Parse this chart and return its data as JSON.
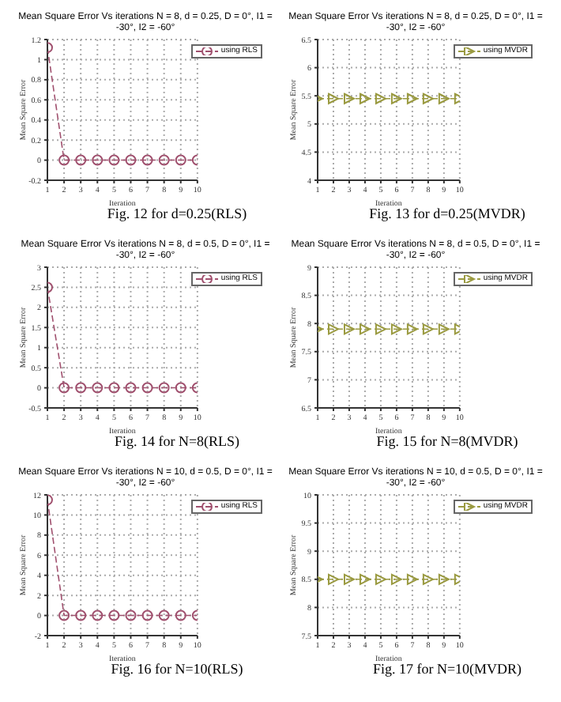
{
  "chart_data": [
    {
      "type": "line",
      "title": "Mean Square Error Vs iterations N = 8, d = 0.25, D = 0°, I1 = -30°, I2 = -60°",
      "xlabel": "Iteration",
      "ylabel": "Mean Square Error",
      "annotations": [
        "Fig. 12 for d=0.25(RLS)"
      ],
      "x": [
        1,
        2,
        3,
        4,
        5,
        6,
        7,
        8,
        9,
        10
      ],
      "xlim": [
        1,
        10
      ],
      "xticks": [
        1,
        2,
        3,
        4,
        5,
        6,
        7,
        8,
        9,
        10
      ],
      "ylim": [
        -0.2,
        1.2
      ],
      "yticks": [
        -0.2,
        0,
        0.2,
        0.4,
        0.6,
        0.8,
        1,
        1.2
      ],
      "series": [
        {
          "name": "using RLS",
          "color": "#a0506e",
          "values": [
            1.12,
            0,
            0,
            0,
            0,
            0,
            0,
            0,
            0,
            0
          ]
        }
      ],
      "legend": "top right",
      "grid": true,
      "marker": "circle",
      "line_style": "dashed"
    },
    {
      "type": "line",
      "title": "Mean Square Error Vs iterations N = 8, d = 0.25, D = 0°, I1 = -30°, I2 = -60°",
      "xlabel": "Iteration",
      "ylabel": "Mean Square Error",
      "annotations": [
        "Fig. 13 for d=0.25(MVDR)"
      ],
      "x": [
        1,
        2,
        3,
        4,
        5,
        6,
        7,
        8,
        9,
        10
      ],
      "xlim": [
        1,
        10
      ],
      "xticks": [
        1,
        2,
        3,
        4,
        5,
        6,
        7,
        8,
        9,
        10
      ],
      "ylim": [
        4,
        6.5
      ],
      "yticks": [
        4,
        4.5,
        5,
        5.5,
        6,
        6.5
      ],
      "series": [
        {
          "name": "using MVDR",
          "color": "#9a9a40",
          "values": [
            5.45,
            5.45,
            5.45,
            5.45,
            5.45,
            5.45,
            5.45,
            5.45,
            5.45,
            5.45
          ]
        }
      ],
      "legend": "top right",
      "grid": true,
      "marker": "triangle",
      "line_style": "dashed"
    },
    {
      "type": "line",
      "title": "Mean Square Error Vs iterations N = 8, d = 0.5, D = 0°, I1 = -30°, I2 = -60°",
      "xlabel": "Iteration",
      "ylabel": "Mean Square Error",
      "annotations": [
        "Fig. 14 for N=8(RLS)"
      ],
      "x": [
        1,
        2,
        3,
        4,
        5,
        6,
        7,
        8,
        9,
        10
      ],
      "xlim": [
        1,
        10
      ],
      "xticks": [
        1,
        2,
        3,
        4,
        5,
        6,
        7,
        8,
        9,
        10
      ],
      "ylim": [
        -0.5,
        3
      ],
      "yticks": [
        -0.5,
        0,
        0.5,
        1,
        1.5,
        2,
        2.5,
        3
      ],
      "series": [
        {
          "name": "using RLS",
          "color": "#a0506e",
          "values": [
            2.5,
            0,
            0,
            0,
            0,
            0,
            0,
            0,
            0,
            0
          ]
        }
      ],
      "legend": "top right",
      "grid": true,
      "marker": "circle",
      "line_style": "dashed"
    },
    {
      "type": "line",
      "title": "Mean Square Error Vs iterations N = 8, d = 0.5, D = 0°, I1 = -30°, I2 = -60°",
      "xlabel": "Iteration",
      "ylabel": "Mean Square Error",
      "annotations": [
        "Fig. 15 for N=8(MVDR)"
      ],
      "x": [
        1,
        2,
        3,
        4,
        5,
        6,
        7,
        8,
        9,
        10
      ],
      "xlim": [
        1,
        10
      ],
      "xticks": [
        1,
        2,
        3,
        4,
        5,
        6,
        7,
        8,
        9,
        10
      ],
      "ylim": [
        6.5,
        9
      ],
      "yticks": [
        6.5,
        7,
        7.5,
        8,
        8.5,
        9
      ],
      "series": [
        {
          "name": "using MVDR",
          "color": "#9a9a40",
          "values": [
            7.9,
            7.9,
            7.9,
            7.9,
            7.9,
            7.9,
            7.9,
            7.9,
            7.9,
            7.9
          ]
        }
      ],
      "legend": "top right",
      "grid": true,
      "marker": "triangle",
      "line_style": "dashed"
    },
    {
      "type": "line",
      "title": "Mean Square Error Vs iterations N = 10, d = 0.5, D = 0°, I1 = -30°, I2 = -60°",
      "xlabel": "Iteration",
      "ylabel": "Mean Square Error",
      "annotations": [
        "Fig. 16 for N=10(RLS)"
      ],
      "x": [
        1,
        2,
        3,
        4,
        5,
        6,
        7,
        8,
        9,
        10
      ],
      "xlim": [
        1,
        10
      ],
      "xticks": [
        1,
        2,
        3,
        4,
        5,
        6,
        7,
        8,
        9,
        10
      ],
      "ylim": [
        -2,
        12
      ],
      "yticks": [
        -2,
        0,
        2,
        4,
        6,
        8,
        10,
        12
      ],
      "series": [
        {
          "name": "using RLS",
          "color": "#a0506e",
          "values": [
            11.5,
            0,
            0,
            0,
            0,
            0,
            0,
            0,
            0,
            0
          ]
        }
      ],
      "legend": "top right",
      "grid": true,
      "marker": "circle",
      "line_style": "dashed"
    },
    {
      "type": "line",
      "title": "Mean Square Error Vs iterations N = 10, d = 0.5, D = 0°, I1 = -30°, I2 = -60°",
      "xlabel": "Iteration",
      "ylabel": "Mean Square Error",
      "annotations": [
        "Fig. 17 for N=10(MVDR)"
      ],
      "x": [
        1,
        2,
        3,
        4,
        5,
        6,
        7,
        8,
        9,
        10
      ],
      "xlim": [
        1,
        10
      ],
      "xticks": [
        1,
        2,
        3,
        4,
        5,
        6,
        7,
        8,
        9,
        10
      ],
      "ylim": [
        7.5,
        10
      ],
      "yticks": [
        7.5,
        8,
        8.5,
        9,
        9.5,
        10
      ],
      "series": [
        {
          "name": "using MVDR",
          "color": "#9a9a40",
          "values": [
            8.5,
            8.5,
            8.5,
            8.5,
            8.5,
            8.5,
            8.5,
            8.5,
            8.5,
            8.5
          ]
        }
      ],
      "legend": "top right",
      "grid": true,
      "marker": "triangle",
      "line_style": "dashed"
    }
  ]
}
